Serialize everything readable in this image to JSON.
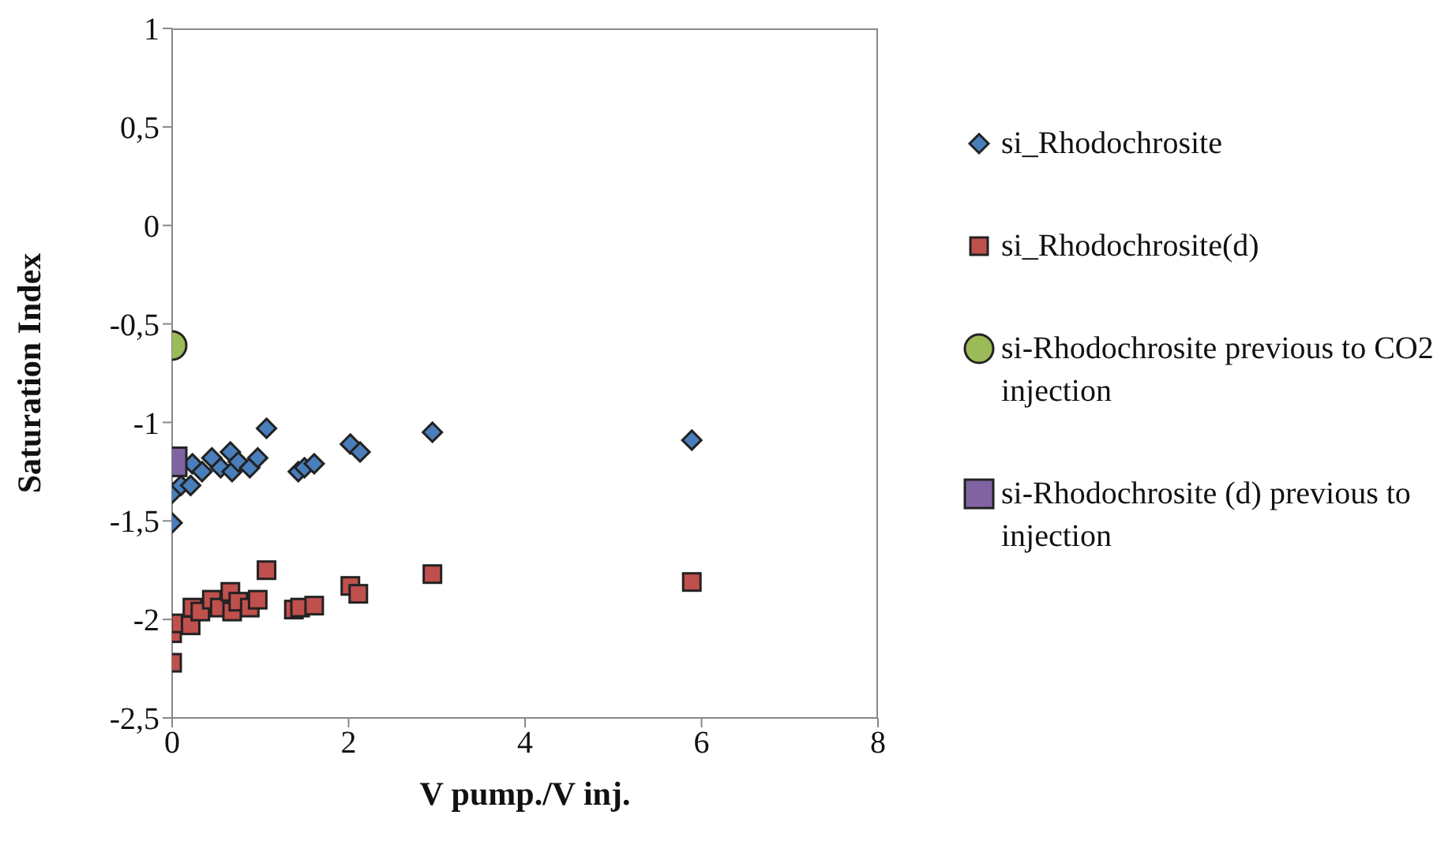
{
  "chart_data": {
    "type": "scatter",
    "xlabel": "V pump./V inj.",
    "ylabel": "Saturation Index",
    "xlim": [
      0,
      8
    ],
    "xticks": [
      0,
      2,
      4,
      6,
      8
    ],
    "ylim": [
      -2.5,
      1
    ],
    "yticks": [
      {
        "value": -2.5,
        "label": "-2,5"
      },
      {
        "value": -2,
        "label": "-2"
      },
      {
        "value": -1.5,
        "label": "-1,5"
      },
      {
        "value": -1,
        "label": "-1"
      },
      {
        "value": -0.5,
        "label": "-0,5"
      },
      {
        "value": 0,
        "label": "0"
      },
      {
        "value": 0.5,
        "label": "0,5"
      },
      {
        "value": 1,
        "label": "1"
      }
    ],
    "legend": "right",
    "grid": false,
    "series": [
      {
        "name": "si_Rhodochrosite",
        "color": "#4a7ebb",
        "marker": "diamond",
        "x": [
          0,
          0,
          0.1,
          0.21,
          0.23,
          0.34,
          0.45,
          0.55,
          0.66,
          0.68,
          0.75,
          0.88,
          0.97,
          1.07,
          1.43,
          1.5,
          1.61,
          2.02,
          2.13,
          2.95,
          5.89
        ],
        "values": [
          -1.51,
          -1.36,
          -1.32,
          -1.32,
          -1.21,
          -1.25,
          -1.18,
          -1.23,
          -1.15,
          -1.25,
          -1.2,
          -1.23,
          -1.18,
          -1.03,
          -1.25,
          -1.23,
          -1.21,
          -1.11,
          -1.15,
          -1.05,
          -1.09
        ]
      },
      {
        "name": "si_Rhodochrosite(d)",
        "color": "#c0504d",
        "marker": "square",
        "x": [
          0,
          0,
          0.09,
          0.21,
          0.23,
          0.32,
          0.45,
          0.54,
          0.66,
          0.68,
          0.75,
          0.88,
          0.97,
          1.07,
          1.38,
          1.45,
          1.61,
          2.02,
          2.11,
          2.95,
          5.89
        ],
        "values": [
          -2.22,
          -2.07,
          -2.02,
          -2.03,
          -1.94,
          -1.96,
          -1.9,
          -1.94,
          -1.86,
          -1.96,
          -1.91,
          -1.94,
          -1.9,
          -1.75,
          -1.95,
          -1.94,
          -1.93,
          -1.83,
          -1.87,
          -1.77,
          -1.81
        ]
      },
      {
        "name": "si-Rhodochrosite previous to CO2 injection",
        "color": "#9bbb59",
        "marker": "circle",
        "x": [
          0
        ],
        "values": [
          -0.61
        ]
      },
      {
        "name": "si-Rhodochrosite (d) previous to injection",
        "color": "#8064a2",
        "marker": "square",
        "x": [
          0
        ],
        "values": [
          -1.2
        ]
      }
    ]
  }
}
